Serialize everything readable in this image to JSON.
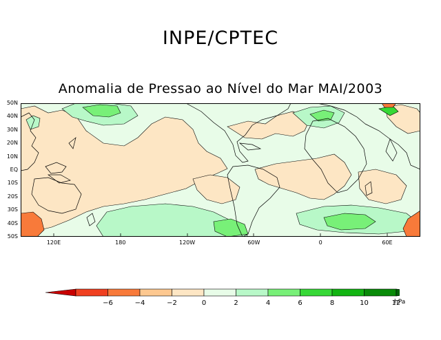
{
  "header": {
    "title": "INPE/CPTEC"
  },
  "map": {
    "title": "Anomalia de Pressao ao Nível do Mar MAI/2003",
    "lat_labels": [
      "50N",
      "40N",
      "30N",
      "20N",
      "10N",
      "EQ",
      "10S",
      "20S",
      "30S",
      "40S",
      "50S"
    ],
    "lon_labels": [
      "120E",
      "180",
      "120W",
      "60W",
      "0",
      "60E"
    ]
  },
  "colorbar": {
    "unit": "hPa",
    "ticks": [
      "−6",
      "−4",
      "−2",
      "0",
      "2",
      "4",
      "6",
      "8",
      "10",
      "12"
    ],
    "colors": {
      "below": "#c80000",
      "bins": [
        "#f04020",
        "#f87a3a",
        "#fdc890",
        "#fde6c4",
        "#e8fce8",
        "#b8f8c8",
        "#78f078",
        "#36d836",
        "#12b412",
        "#088a08"
      ],
      "above": "#00640a"
    }
  }
}
